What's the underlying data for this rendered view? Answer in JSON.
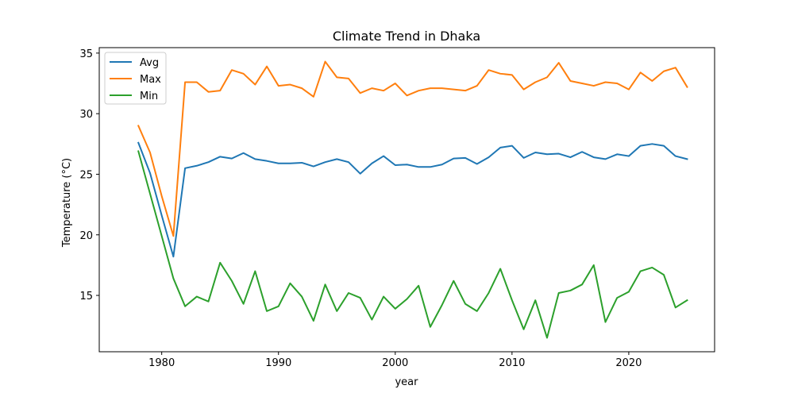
{
  "chart_data": {
    "type": "line",
    "title": "Climate Trend in Dhaka",
    "xlabel": "year",
    "ylabel": "Temperature (°C)",
    "xlim": [
      1974.65,
      2027.35
    ],
    "ylim": [
      10.35,
      35.45
    ],
    "xticks": [
      1980,
      1990,
      2000,
      2010,
      2020
    ],
    "yticks": [
      15,
      20,
      25,
      30,
      35
    ],
    "grid": false,
    "legend_position": "top-left",
    "x": [
      1978,
      1979,
      1980,
      1981,
      1982,
      1983,
      1984,
      1985,
      1986,
      1987,
      1988,
      1989,
      1990,
      1991,
      1992,
      1993,
      1994,
      1995,
      1996,
      1997,
      1998,
      1999,
      2000,
      2001,
      2002,
      2003,
      2004,
      2005,
      2006,
      2007,
      2008,
      2009,
      2010,
      2011,
      2012,
      2013,
      2014,
      2015,
      2016,
      2017,
      2018,
      2019,
      2020,
      2021,
      2022,
      2023,
      2024,
      2025
    ],
    "series": [
      {
        "name": "Avg",
        "color": "#1f77b4",
        "values": [
          27.6,
          25.1,
          21.6,
          18.2,
          25.5,
          25.7,
          26.0,
          26.45,
          26.3,
          26.75,
          26.25,
          26.1,
          25.9,
          25.9,
          25.95,
          25.65,
          26.0,
          26.25,
          26.0,
          25.05,
          25.9,
          26.5,
          25.75,
          25.8,
          25.6,
          25.6,
          25.8,
          26.3,
          26.35,
          25.85,
          26.4,
          27.2,
          27.35,
          26.35,
          26.8,
          26.65,
          26.7,
          26.4,
          26.85,
          26.4,
          26.25,
          26.65,
          26.5,
          27.35,
          27.5,
          27.35,
          26.5,
          26.25
        ]
      },
      {
        "name": "Max",
        "color": "#ff7f0e",
        "values": [
          29.0,
          26.8,
          23.2,
          19.9,
          32.6,
          32.6,
          31.8,
          31.9,
          33.6,
          33.3,
          32.4,
          33.9,
          32.3,
          32.4,
          32.1,
          31.4,
          34.3,
          33.0,
          32.9,
          31.7,
          32.1,
          31.9,
          32.5,
          31.5,
          31.9,
          32.1,
          32.1,
          32.0,
          31.9,
          32.3,
          33.6,
          33.3,
          33.2,
          32.0,
          32.6,
          33.0,
          34.2,
          32.7,
          32.5,
          32.3,
          32.6,
          32.5,
          32.0,
          33.4,
          32.7,
          33.5,
          33.8,
          32.2
        ]
      },
      {
        "name": "Min",
        "color": "#2ca02c",
        "values": [
          26.9,
          23.4,
          19.9,
          16.4,
          14.1,
          14.9,
          14.5,
          17.7,
          16.2,
          14.3,
          17.0,
          13.7,
          14.1,
          16.0,
          14.9,
          12.9,
          15.9,
          13.7,
          15.2,
          14.8,
          13.0,
          14.9,
          13.9,
          14.7,
          15.8,
          12.4,
          14.2,
          16.2,
          14.3,
          13.7,
          15.2,
          17.2,
          14.6,
          12.2,
          14.6,
          11.5,
          15.2,
          15.4,
          15.9,
          17.5,
          12.8,
          14.8,
          15.3,
          17.0,
          17.3,
          16.7,
          14.0,
          14.6
        ]
      }
    ]
  }
}
